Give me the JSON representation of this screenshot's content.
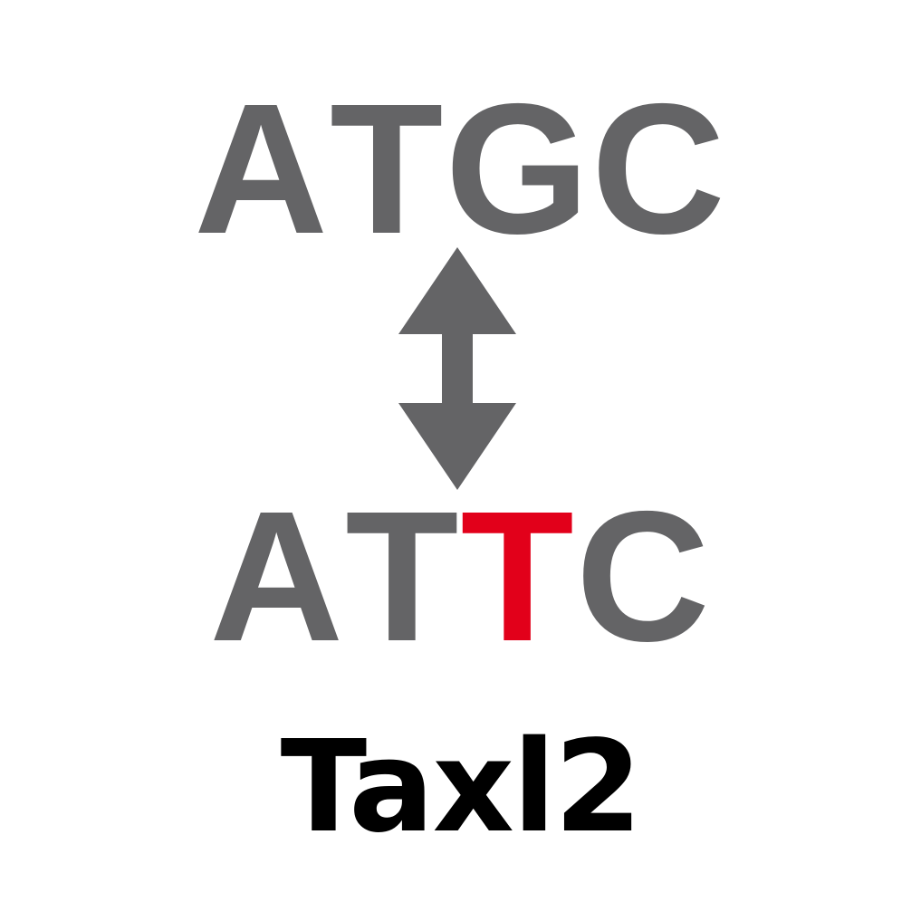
{
  "colors": {
    "base_gray": "#646466",
    "mutation_red": "#e2001a",
    "arrow_gray": "#646466",
    "label_black": "#000000"
  },
  "reference_sequence": {
    "bases": [
      {
        "letter": "A",
        "highlight": false
      },
      {
        "letter": "T",
        "highlight": false
      },
      {
        "letter": "G",
        "highlight": false
      },
      {
        "letter": "C",
        "highlight": false
      }
    ]
  },
  "variant_sequence": {
    "bases": [
      {
        "letter": "A",
        "highlight": false
      },
      {
        "letter": "T",
        "highlight": false
      },
      {
        "letter": "T",
        "highlight": true
      },
      {
        "letter": "C",
        "highlight": false
      }
    ]
  },
  "arrow_icon": "double-vertical-arrow-icon",
  "gene_label": "Taxl2"
}
